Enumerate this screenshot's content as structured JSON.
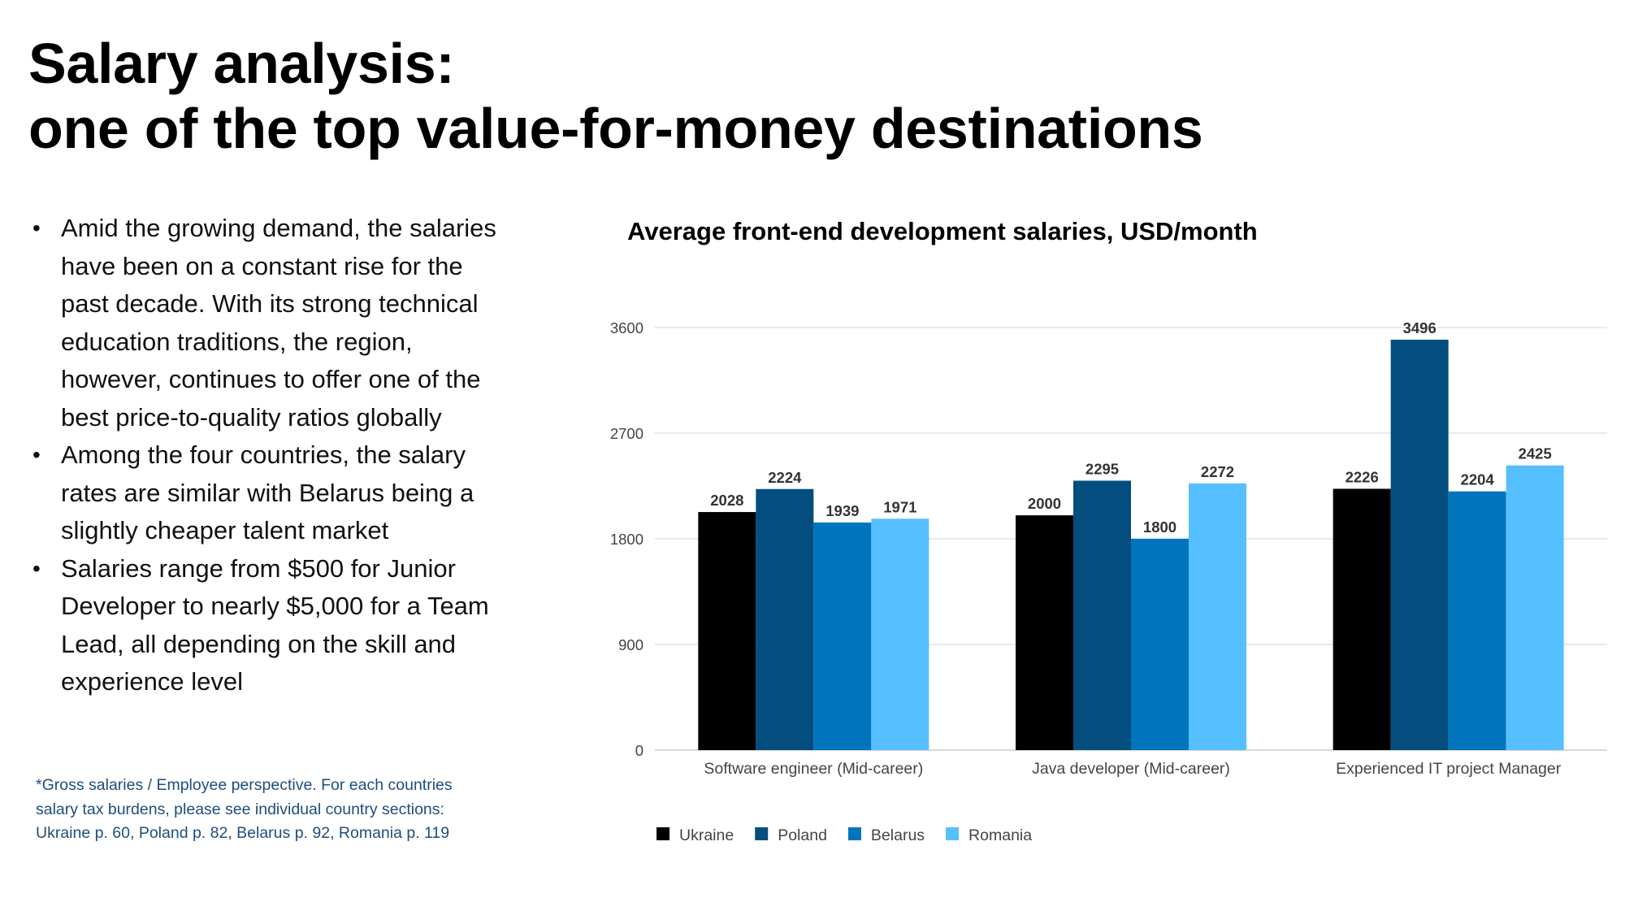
{
  "heading": {
    "line1": "Salary analysis:",
    "line2": "one of the top value-for-money destinations"
  },
  "bullets": [
    "Amid the growing demand, the salaries have been on a constant rise for the past decade. With its strong technical education traditions, the region, however, continues to offer one of the best price-to-quality ratios globally",
    "Among the four countries, the salary rates are similar with Belarus being a slightly cheaper talent market",
    "Salaries range from $500 for Junior Developer to nearly $5,000 for a Team Lead, all depending on the skill and experience level"
  ],
  "footnote": {
    "line1": "*Gross salaries / Employee perspective. For each countries",
    "line2": "salary tax burdens, please see individual country sections:",
    "line3": "Ukraine p. 60,  Poland p. 82, Belarus p. 92, Romania p. 119"
  },
  "chart_data": {
    "type": "bar",
    "title": "Average front-end development salaries, USD/month",
    "categories": [
      "Software engineer (Mid-career)",
      "Java developer (Mid-career)",
      "Experienced IT project Manager"
    ],
    "series": [
      {
        "name": "Ukraine",
        "color": "#000000",
        "values": [
          2028,
          2000,
          2226
        ]
      },
      {
        "name": "Poland",
        "color": "#034e7e",
        "values": [
          2224,
          2295,
          3496
        ]
      },
      {
        "name": "Belarus",
        "color": "#0075bd",
        "values": [
          1939,
          1800,
          2204
        ]
      },
      {
        "name": "Romania",
        "color": "#56bfff",
        "values": [
          1971,
          2272,
          2425
        ]
      }
    ],
    "ylim": [
      0,
      3600
    ],
    "yticks": [
      0,
      900,
      1800,
      2700,
      3600
    ],
    "xlabel": "",
    "ylabel": "",
    "grid": true,
    "legend_position": "bottom-left"
  }
}
